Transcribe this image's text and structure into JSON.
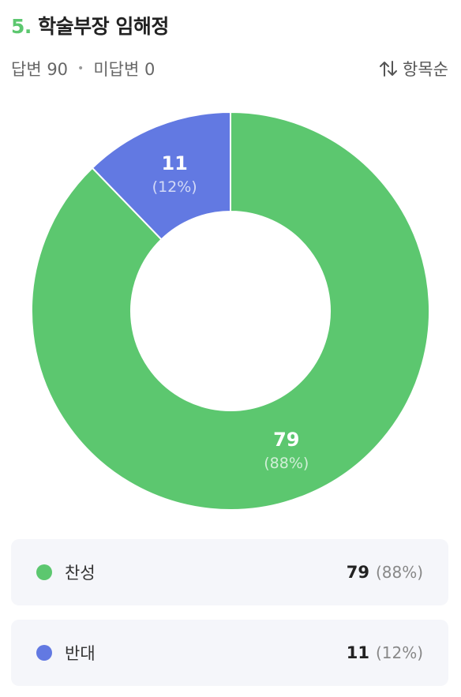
{
  "question": {
    "number": "5.",
    "title": "학술부장 임해정"
  },
  "stats": {
    "answered": "답변 90",
    "unanswered": "미답변 0"
  },
  "sort": {
    "label": "항목순",
    "icon": "sort-arrows-icon"
  },
  "colors": {
    "accent": "#5cc76f",
    "series1": "#5cc76f",
    "series2": "#6279e2"
  },
  "chart_data": {
    "type": "pie",
    "donut": true,
    "categories": [
      "찬성",
      "반대"
    ],
    "values": [
      79,
      11
    ],
    "percent_labels": [
      "(88%)",
      "(12%)"
    ],
    "colors": [
      "#5cc76f",
      "#6279e2"
    ]
  },
  "legend": [
    {
      "label": "찬성",
      "count": "79",
      "percent": "(88%)",
      "color": "#5cc76f"
    },
    {
      "label": "반대",
      "count": "11",
      "percent": "(12%)",
      "color": "#6279e2"
    }
  ]
}
